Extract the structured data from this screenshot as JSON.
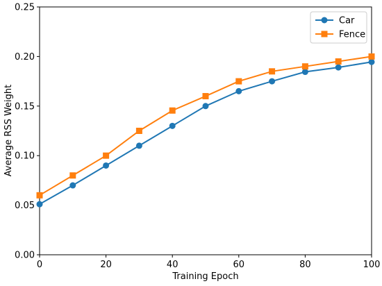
{
  "chart_data": {
    "type": "line",
    "title": "",
    "xlabel": "Training Epoch",
    "ylabel": "Average RSS Weight",
    "xlim": [
      0,
      100
    ],
    "ylim": [
      0,
      0.25
    ],
    "x": [
      0,
      10,
      20,
      30,
      40,
      50,
      60,
      70,
      80,
      90,
      100
    ],
    "xticks": [
      "0",
      "20",
      "40",
      "60",
      "80",
      "100"
    ],
    "yticks": [
      "0.00",
      "0.05",
      "0.10",
      "0.15",
      "0.20",
      "0.25"
    ],
    "grid": false,
    "legend_position": "top-right",
    "series": [
      {
        "name": "Car",
        "color": "#1f77b4",
        "marker": "circle",
        "values": [
          0.051,
          0.07,
          0.09,
          0.11,
          0.13,
          0.15,
          0.165,
          0.175,
          0.1845,
          0.189,
          0.1945
        ]
      },
      {
        "name": "Fence",
        "color": "#ff7f0e",
        "marker": "square",
        "values": [
          0.06,
          0.08,
          0.1,
          0.125,
          0.1455,
          0.16,
          0.175,
          0.185,
          0.19,
          0.195,
          0.2
        ]
      }
    ]
  }
}
